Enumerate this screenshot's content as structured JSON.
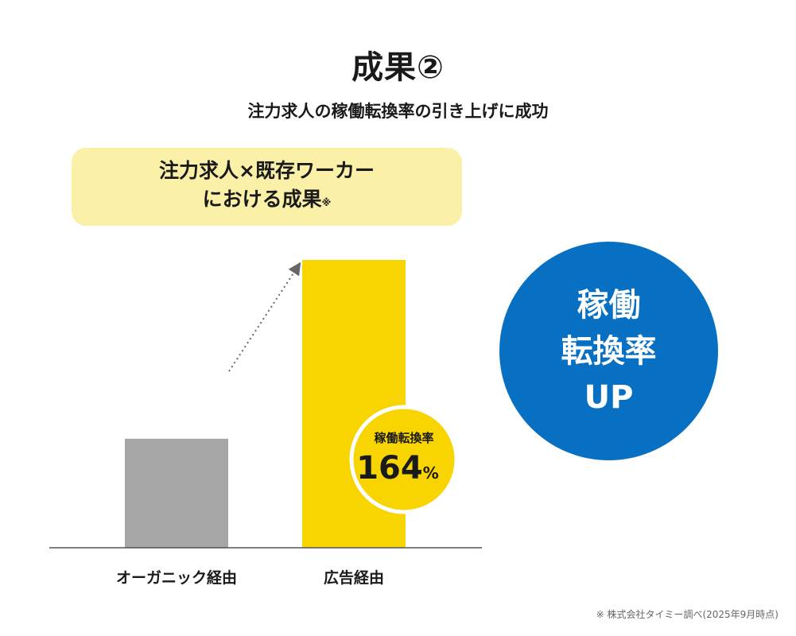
{
  "header": {
    "title": "成果②",
    "subtitle": "注力求人の稼働転換率の引き上げに成功"
  },
  "callout": {
    "line1": "注力求人×既存ワーカー",
    "line2": "における成果",
    "note_mark": "※"
  },
  "chart_data": {
    "type": "bar",
    "categories": [
      "オーガニック経由",
      "広告経由"
    ],
    "values": [
      100,
      264
    ],
    "ylim": [
      0,
      300
    ],
    "colors": [
      "#a6a6a6",
      "#f8d400"
    ],
    "arrow": "dotted",
    "badge": {
      "label": "稼働転換率",
      "value": "164",
      "unit": "%"
    }
  },
  "circle": {
    "line1": "稼働",
    "line2": "転換率",
    "line3": "UP"
  },
  "footnote": "※ 株式会社タイミー調べ(2025年9月時点)"
}
